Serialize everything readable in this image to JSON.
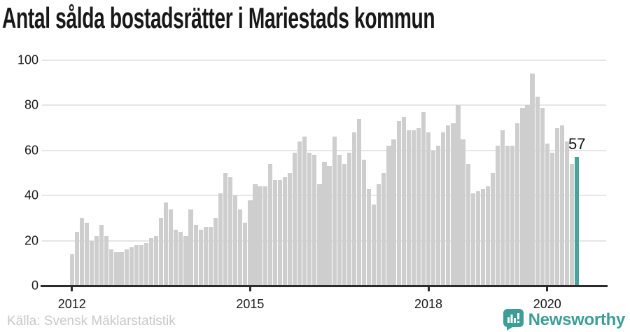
{
  "title": "Antal sålda bostadsrätter i Mariestads kommun",
  "source": "Källa: Svensk Mäklarstatistik",
  "logo_text": "Newsworthy",
  "colors": {
    "bar": "#cecece",
    "highlight": "#4aa29a",
    "gridline": "#e6e6e6",
    "axis": "#2b2b2b",
    "logo_teal": "#3d9e96",
    "title_text": "#181818",
    "source_text": "#c9c9c9"
  },
  "chart_data": {
    "type": "bar",
    "title": "Antal sålda bostadsrätter i Mariestads kommun",
    "xlabel": "",
    "ylabel": "",
    "x_start": "2012-01",
    "x_interval": "month",
    "values": [
      14,
      24,
      30,
      28,
      20,
      22,
      27,
      22,
      16,
      15,
      15,
      16,
      17,
      18,
      18,
      19,
      21,
      22,
      30,
      37,
      34,
      25,
      24,
      22,
      34,
      27,
      25,
      26,
      26,
      30,
      41,
      50,
      48,
      40,
      34,
      28,
      38,
      45,
      44,
      44,
      54,
      47,
      47,
      48,
      50,
      59,
      64,
      66,
      59,
      58,
      45,
      55,
      53,
      66,
      58,
      54,
      59,
      68,
      74,
      56,
      43,
      36,
      45,
      50,
      62,
      65,
      73,
      75,
      69,
      69,
      70,
      77,
      68,
      60,
      62,
      68,
      71,
      72,
      80,
      65,
      54,
      41,
      42,
      43,
      44,
      50,
      62,
      69,
      62,
      62,
      72,
      79,
      80,
      94,
      84,
      79,
      63,
      59,
      70,
      71,
      64,
      54,
      57
    ],
    "ylim": [
      0,
      100
    ],
    "y_ticks": [
      0,
      20,
      40,
      60,
      80,
      100
    ],
    "x_tick_labels": [
      "2012",
      "2015",
      "2018",
      "2020"
    ],
    "x_tick_month_indices": [
      0,
      36,
      72,
      96
    ],
    "grid": "horizontal",
    "legend": "none",
    "highlight_index": 102,
    "highlight_value": 57,
    "highlight_label": "57"
  }
}
